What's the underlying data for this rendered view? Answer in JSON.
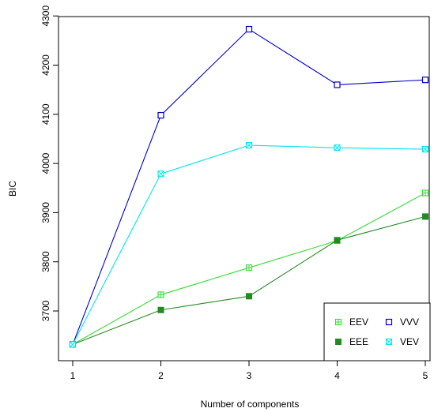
{
  "chart_data": {
    "type": "line",
    "title": "",
    "xlabel": "Number of components",
    "ylabel": "BIC",
    "x": [
      1,
      2,
      3,
      4,
      5
    ],
    "xlim": [
      1,
      5
    ],
    "ylim": [
      3600,
      4300
    ],
    "xticks": [
      "1",
      "2",
      "3",
      "4",
      "5"
    ],
    "yticks": [
      "3700",
      "3800",
      "3900",
      "4000",
      "4100",
      "4200",
      "4300"
    ],
    "grid": false,
    "legend_position": "bottom-right",
    "series": [
      {
        "name": "EEV",
        "values": [
          3632,
          3733,
          3788,
          3843,
          3940
        ],
        "color": "#33dd33",
        "marker": "square-plus"
      },
      {
        "name": "EEE",
        "values": [
          3632,
          3702,
          3730,
          3844,
          3892
        ],
        "color": "#228B22",
        "marker": "filled-square"
      },
      {
        "name": "VVV",
        "values": [
          3632,
          4098,
          4273,
          4160,
          4170
        ],
        "color": "#0000cc",
        "marker": "open-square"
      },
      {
        "name": "VEV",
        "values": [
          3632,
          3979,
          4037,
          4032,
          4029
        ],
        "color": "#00e5ee",
        "marker": "square-x"
      }
    ]
  }
}
